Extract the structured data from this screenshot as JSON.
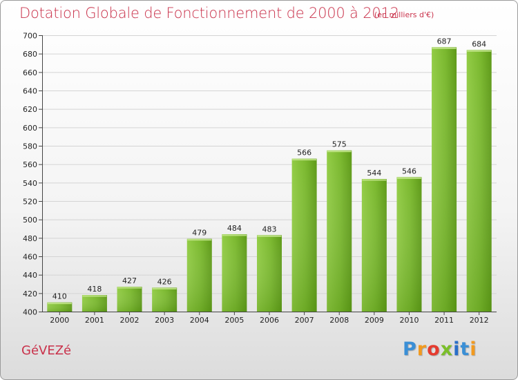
{
  "chart_data": {
    "type": "bar",
    "title": "Dotation Globale de Fonctionnement de 2000 à 2012",
    "subtitle": "(en milliers d'€)",
    "categories": [
      "2000",
      "2001",
      "2002",
      "2003",
      "2004",
      "2005",
      "2006",
      "2007",
      "2008",
      "2009",
      "2010",
      "2011",
      "2012"
    ],
    "values": [
      410,
      418,
      427,
      426,
      479,
      484,
      483,
      566,
      575,
      544,
      546,
      687,
      684
    ],
    "ylim": [
      400,
      700
    ],
    "yticks": [
      400,
      420,
      440,
      460,
      480,
      500,
      520,
      540,
      560,
      580,
      600,
      620,
      640,
      660,
      680,
      700
    ],
    "grid": true,
    "bar_color": "#7ab82e",
    "bar_color_dark": "#5e9a18",
    "grid_color": "#d4d4d4"
  },
  "commune": "GéVEZé",
  "logo": {
    "letters": [
      "P",
      "r",
      "o",
      "x",
      "i",
      "t",
      "i"
    ]
  }
}
